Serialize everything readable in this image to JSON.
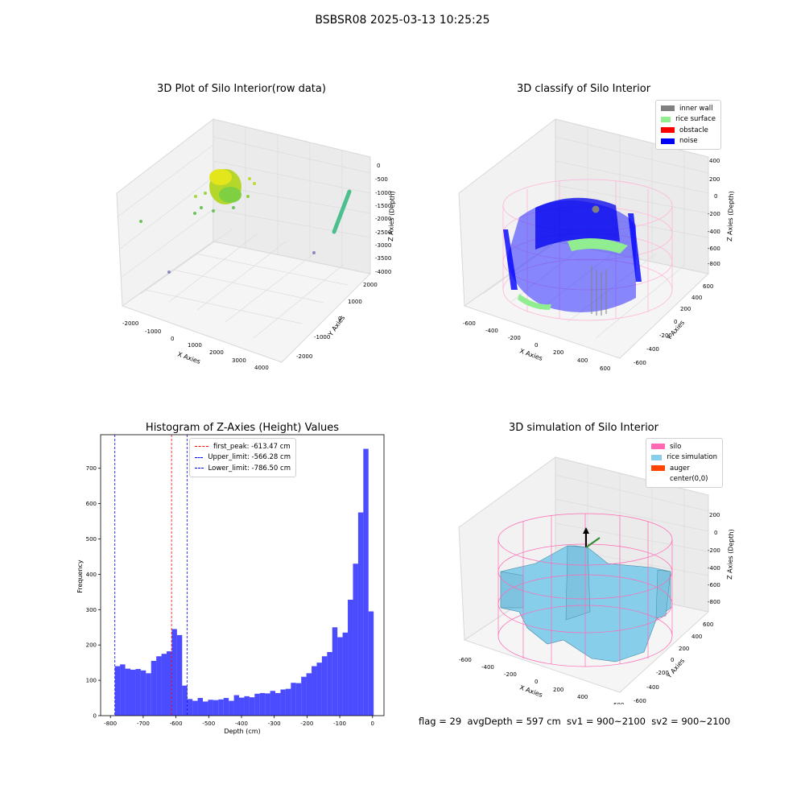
{
  "suptitle": "BSBSR08 2025-03-13 10:25:25",
  "panels": {
    "raw": {
      "title": "3D Plot of Silo Interior(row data)",
      "xlabel": "X Axies",
      "ylabel": "Y Axies",
      "zlabel": "Z Axies (Depth)",
      "xticks": [
        "-2000",
        "-1000",
        "0",
        "1000",
        "2000",
        "3000",
        "4000"
      ],
      "yticks": [
        "-2000",
        "-1000",
        "0",
        "1000",
        "2000"
      ],
      "zticks": [
        "0",
        "-500",
        "-1000",
        "-1500",
        "-2000",
        "-2500",
        "-3000",
        "-3500",
        "-4000"
      ]
    },
    "classify": {
      "title": "3D classify of Silo Interior",
      "xlabel": "X Axies",
      "ylabel": "Y Axies",
      "zlabel": "Z Axies (Depth)",
      "xticks": [
        "-600",
        "-400",
        "-200",
        "0",
        "200",
        "400",
        "600"
      ],
      "yticks": [
        "-600",
        "-400",
        "-200",
        "0",
        "200",
        "400",
        "600"
      ],
      "zticks": [
        "400",
        "200",
        "0",
        "-200",
        "-400",
        "-600",
        "-800"
      ],
      "legend": [
        {
          "label": "inner wall",
          "color": "#808080"
        },
        {
          "label": "rice surface",
          "color": "#90ee90"
        },
        {
          "label": "obstacle",
          "color": "#ff0000"
        },
        {
          "label": "noise",
          "color": "#0000ff"
        }
      ]
    },
    "simulation": {
      "title": "3D simulation of Silo Interior",
      "xlabel": "X Axies",
      "ylabel": "Y Axies",
      "zlabel": "Z Axies (Depth)",
      "xticks": [
        "-600",
        "-400",
        "-200",
        "0",
        "200",
        "400",
        "600"
      ],
      "yticks": [
        "-600",
        "-400",
        "-200",
        "0",
        "200",
        "400",
        "600"
      ],
      "zticks": [
        "200",
        "0",
        "-200",
        "-400",
        "-600",
        "-800"
      ],
      "legend": [
        {
          "label": "silo",
          "color": "#ff69b4"
        },
        {
          "label": "rice simulation",
          "color": "#87ceeb"
        },
        {
          "label": "auger",
          "color": "#ff4500"
        },
        {
          "label": "center(0,0)",
          "color": "#ffffff"
        }
      ]
    }
  },
  "footer": "flag = 29  avgDepth = 597 cm  sv1 = 900~2100  sv2 = 900~2100",
  "chart_data": [
    {
      "type": "bar",
      "title": "Histogram of Z-Axies (Height) Values",
      "xlabel": "Depth (cm)",
      "ylabel": "Frequency",
      "xlim": [
        -830,
        35
      ],
      "ylim": [
        0,
        795
      ],
      "xticks": [
        "-800",
        "-700",
        "-600",
        "-500",
        "-400",
        "-300",
        "-200",
        "-100",
        "0"
      ],
      "yticks": [
        "0",
        "100",
        "200",
        "300",
        "400",
        "500",
        "600",
        "700"
      ],
      "bin_start": -786.5,
      "bin_width": 15.8,
      "values": [
        140,
        145,
        133,
        130,
        132,
        128,
        120,
        155,
        168,
        175,
        182,
        245,
        228,
        85,
        47,
        42,
        50,
        40,
        45,
        44,
        46,
        50,
        42,
        58,
        51,
        55,
        52,
        62,
        64,
        63,
        70,
        64,
        74,
        76,
        93,
        92,
        110,
        120,
        140,
        150,
        168,
        180,
        250,
        222,
        235,
        328,
        430,
        575,
        755,
        295
      ],
      "color": "#0000ff",
      "vlines": [
        {
          "label": "first_peak: -613.47 cm",
          "x": -613.47,
          "color": "#ff0000"
        },
        {
          "label": "Upper_limit: -566.28 cm",
          "x": -566.28,
          "color": "#0000ff"
        },
        {
          "label": "Lower_limit: -786.50 cm",
          "x": -786.5,
          "color": "#0000ff"
        }
      ],
      "legend_position": "upper-center"
    }
  ]
}
